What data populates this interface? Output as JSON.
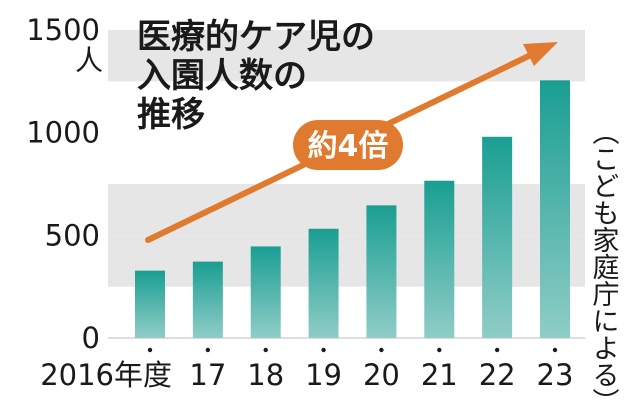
{
  "chart_data": {
    "type": "bar",
    "title_lines": [
      "医療的ケア児の",
      "入園人数の",
      "推移"
    ],
    "y_unit": "人",
    "categories": [
      "2016年度",
      "17",
      "18",
      "19",
      "20",
      "21",
      "22",
      "23"
    ],
    "values": [
      328,
      372,
      446,
      532,
      646,
      766,
      980,
      1255
    ],
    "ylim": [
      0,
      1500
    ],
    "yticks": [
      0,
      500,
      1000,
      1500
    ],
    "grid": "alternating horizontal bands",
    "annotation": "約4倍",
    "source": "（こども家庭庁による）"
  },
  "colors": {
    "bar_top": "#1a9e92",
    "bar_bottom": "#8fcdc7",
    "band": "#e6e6e6",
    "arrow": "#e07a2e"
  }
}
